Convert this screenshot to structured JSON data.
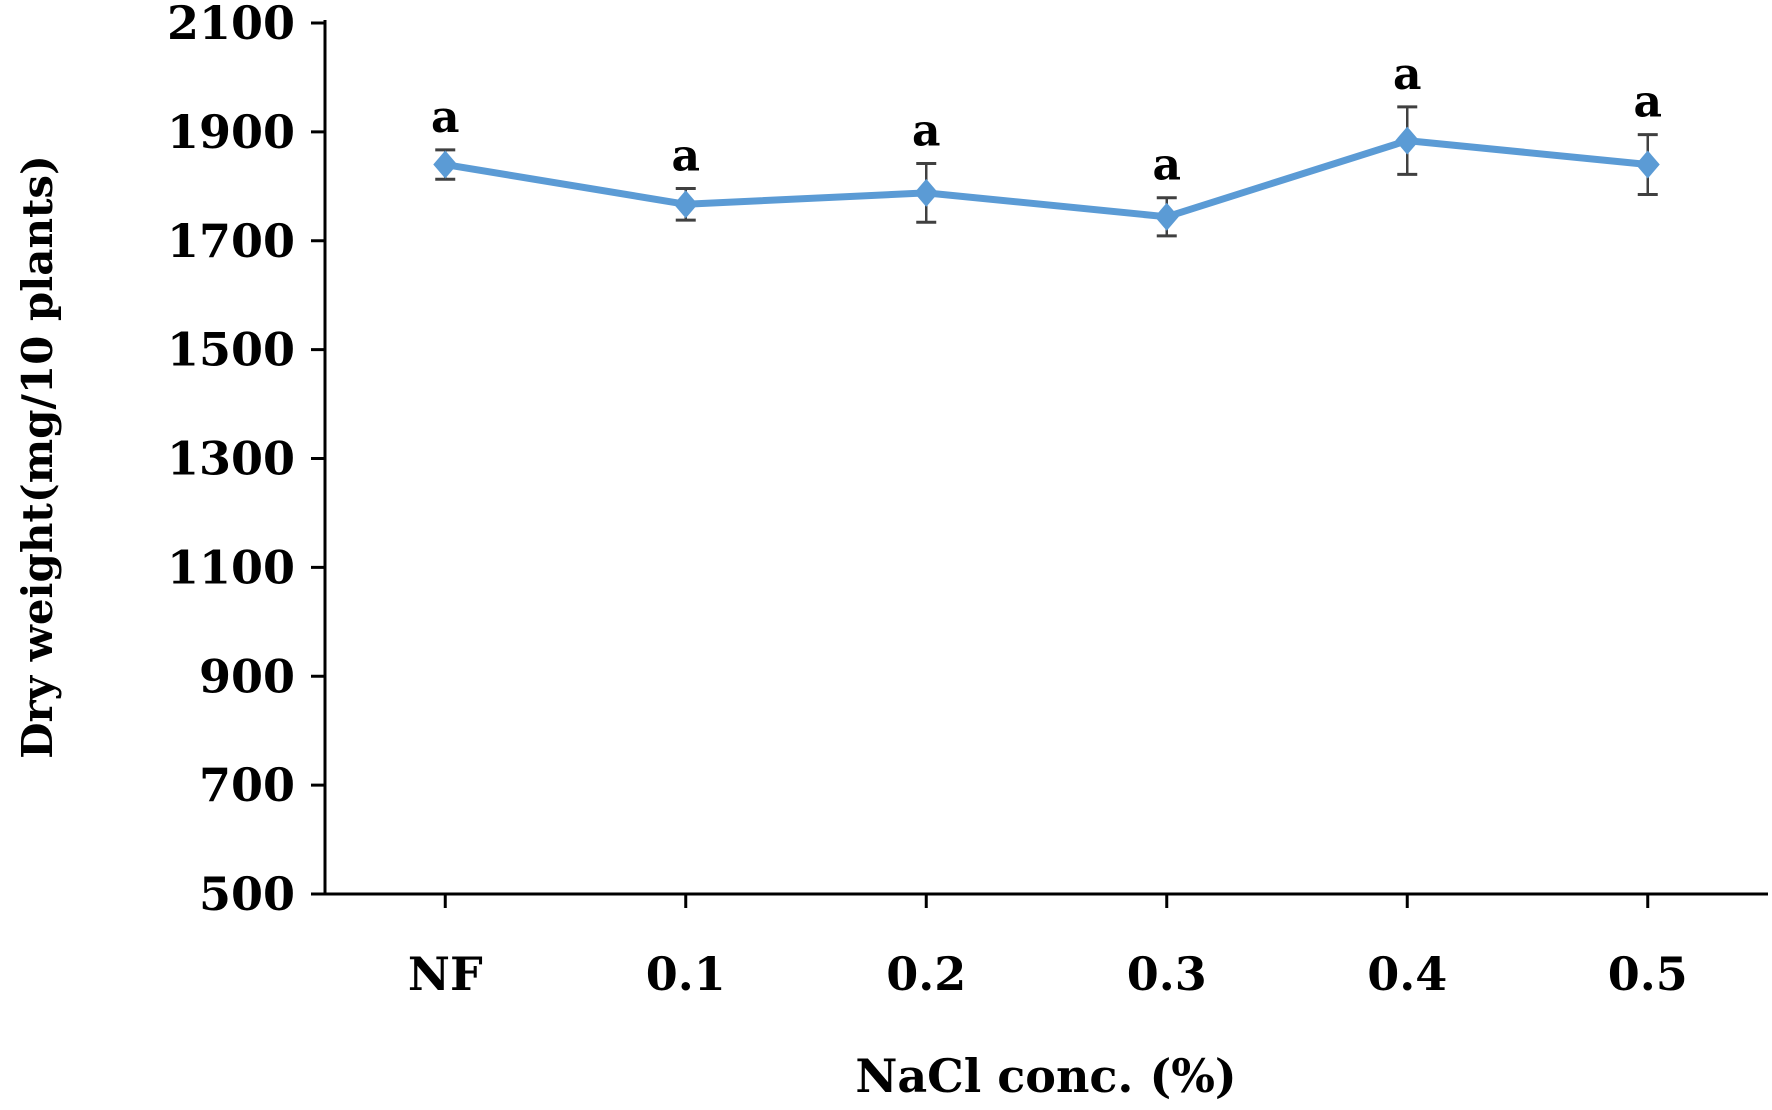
{
  "chart_data": {
    "type": "line",
    "title": "",
    "xlabel": "NaCl conc. (%)",
    "ylabel": "Dry weight(mg/10 plants)",
    "ylim": [
      500,
      2100
    ],
    "yticks": [
      500,
      700,
      900,
      1100,
      1300,
      1500,
      1700,
      1900,
      2100
    ],
    "categories": [
      "NF",
      "0.1",
      "0.2",
      "0.3",
      "0.4",
      "0.5"
    ],
    "grid": false,
    "legend": "none",
    "series": [
      {
        "values": [
          1840,
          1767,
          1788,
          1744,
          1884,
          1840
        ],
        "errors": [
          27,
          29,
          54,
          35,
          62,
          55
        ],
        "labels": [
          "a",
          "a",
          "a",
          "a",
          "a",
          "a"
        ],
        "color": "#5B9BD5",
        "marker": "diamond"
      }
    ],
    "error_bar_color": "#404040"
  }
}
